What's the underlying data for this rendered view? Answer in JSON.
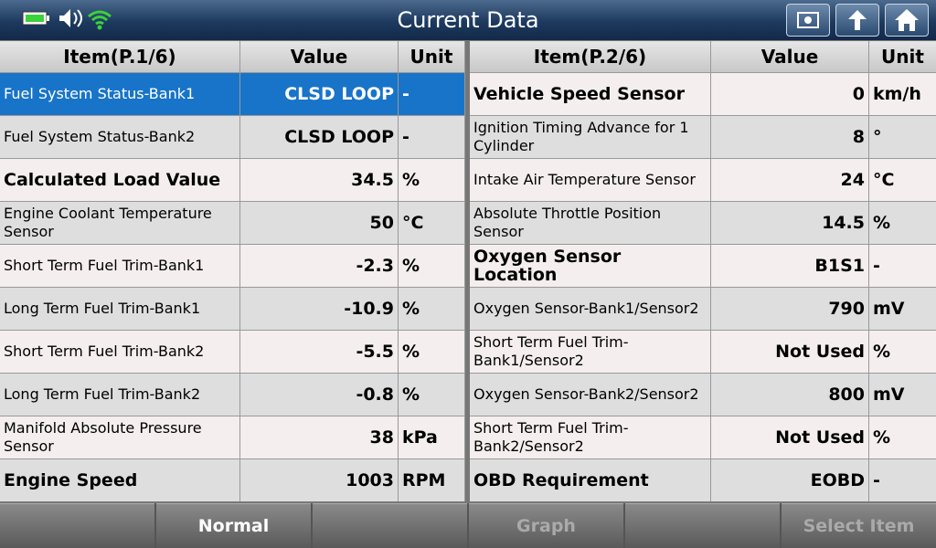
{
  "header": {
    "title": "Current Data"
  },
  "tables": [
    {
      "columns": [
        "Item(P.1/6)",
        "Value",
        "Unit"
      ],
      "rows": [
        [
          "Fuel System Status-Bank1",
          "CLSD LOOP",
          "-"
        ],
        [
          "Fuel System Status-Bank2",
          "CLSD LOOP",
          "-"
        ],
        [
          "Calculated Load Value",
          "34.5",
          "%"
        ],
        [
          "Engine Coolant Temperature Sensor",
          "50",
          "°C"
        ],
        [
          "Short Term Fuel Trim-Bank1",
          "-2.3",
          "%"
        ],
        [
          "Long Term Fuel Trim-Bank1",
          "-10.9",
          "%"
        ],
        [
          "Short Term Fuel Trim-Bank2",
          "-5.5",
          "%"
        ],
        [
          "Long Term Fuel Trim-Bank2",
          "-0.8",
          "%"
        ],
        [
          "Manifold Absolute Pressure Sensor",
          "38",
          "kPa"
        ],
        [
          "Engine Speed",
          "1003",
          "RPM"
        ]
      ]
    },
    {
      "columns": [
        "Item(P.2/6)",
        "Value",
        "Unit"
      ],
      "rows": [
        [
          "Vehicle Speed Sensor",
          "0",
          "km/h"
        ],
        [
          "Ignition Timing Advance for 1 Cylinder",
          "8",
          "°"
        ],
        [
          "Intake Air Temperature Sensor",
          "24",
          "°C"
        ],
        [
          "Absolute Throttle Position Sensor",
          "14.5",
          "%"
        ],
        [
          "Oxygen Sensor Location",
          "B1S1",
          "-"
        ],
        [
          "Oxygen Sensor-Bank1/Sensor2",
          "790",
          "mV"
        ],
        [
          "Short Term Fuel Trim-Bank1/Sensor2",
          "Not Used",
          "%"
        ],
        [
          "Oxygen Sensor-Bank2/Sensor2",
          "800",
          "mV"
        ],
        [
          "Short Term Fuel Trim-Bank2/Sensor2",
          "Not Used",
          "%"
        ],
        [
          "OBD Requirement",
          "EOBD",
          "-"
        ]
      ]
    }
  ],
  "footer": {
    "buttons": [
      "Normal",
      "Graph",
      "Select Item"
    ]
  }
}
